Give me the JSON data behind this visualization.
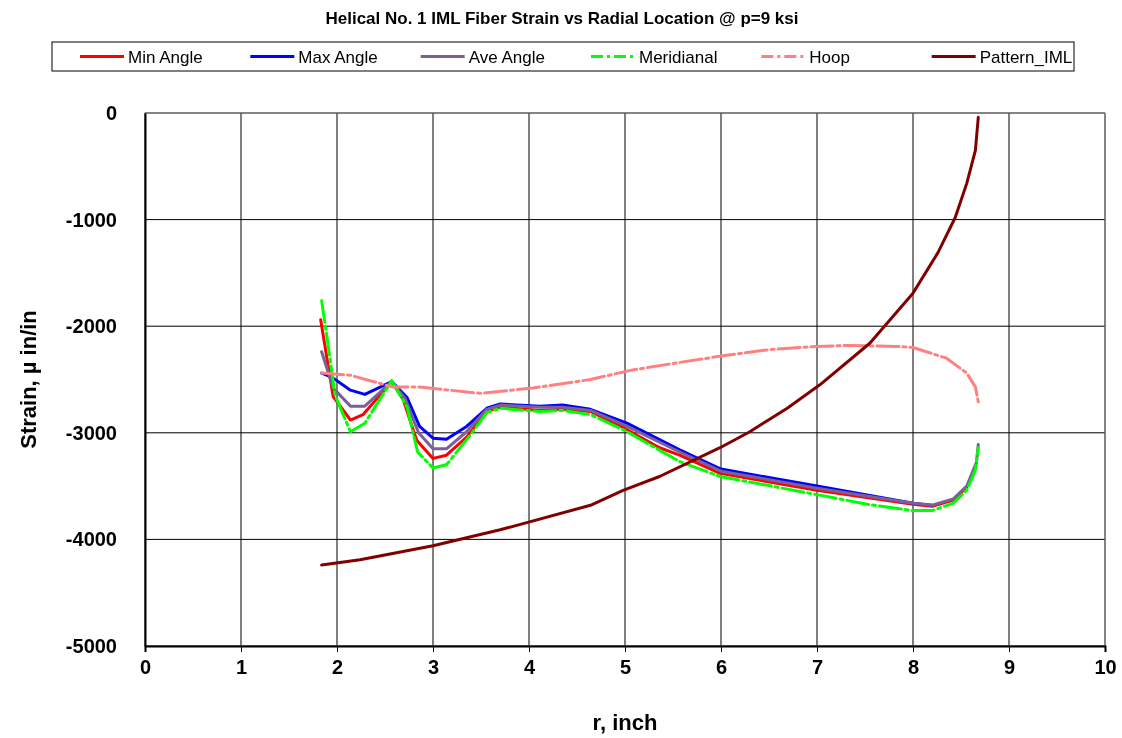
{
  "chart_data": {
    "type": "line",
    "title": "Helical No. 1 IML Fiber Strain vs Radial Location @ p=9 ksi",
    "xlabel": "r, inch",
    "ylabel": "Strain, µ in/in",
    "xlim": [
      0,
      10
    ],
    "xticks": [
      0,
      1,
      2,
      3,
      4,
      5,
      6,
      7,
      8,
      9,
      10
    ],
    "ylim": [
      -5000,
      0
    ],
    "yticks": [
      -5000,
      -4000,
      -3000,
      -2000,
      -1000,
      0
    ],
    "grid": true,
    "legend": "top",
    "marker": "none",
    "series": [
      {
        "name": "Min Angle",
        "color": "#ff0000",
        "line_style": "solid",
        "x": [
          1.83,
          1.96,
          2.14,
          2.27,
          2.57,
          2.69,
          2.83,
          3.0,
          3.14,
          3.35,
          3.56,
          3.7,
          4.11,
          4.35,
          4.64,
          4.98,
          5.36,
          5.57,
          5.99,
          7.0,
          8.0,
          8.2,
          8.42,
          8.56
        ],
        "values": [
          -1940,
          -2660,
          -2880,
          -2830,
          -2520,
          -2690,
          -3070,
          -3240,
          -3210,
          -3040,
          -2800,
          -2760,
          -2790,
          -2780,
          -2800,
          -2950,
          -3140,
          -3210,
          -3380,
          -3540,
          -3670,
          -3690,
          -3630,
          -3510
        ]
      },
      {
        "name": "Max Angle",
        "color": "#0000ff",
        "line_style": "solid",
        "x": [
          1.84,
          1.95,
          2.14,
          2.29,
          2.57,
          2.73,
          2.86,
          3.0,
          3.14,
          3.35,
          3.56,
          3.7,
          4.11,
          4.35,
          4.64,
          5.02,
          5.57,
          6.0,
          7.0,
          8.0,
          8.2
        ],
        "values": [
          -2440,
          -2480,
          -2600,
          -2640,
          -2520,
          -2670,
          -2940,
          -3050,
          -3060,
          -2940,
          -2770,
          -2730,
          -2750,
          -2740,
          -2780,
          -2910,
          -3160,
          -3340,
          -3500,
          -3660,
          -3680
        ]
      },
      {
        "name": "Ave Angle",
        "color": "#7b5f99",
        "line_style": "solid",
        "x": [
          1.84,
          1.96,
          2.14,
          2.29,
          2.57,
          2.71,
          2.85,
          3.0,
          3.14,
          3.35,
          3.56,
          3.7,
          4.11,
          4.35,
          4.64,
          5.0,
          5.57,
          6.0,
          7.0,
          8.0,
          8.2,
          8.42,
          8.56,
          8.66,
          8.68
        ],
        "values": [
          -2240,
          -2580,
          -2750,
          -2750,
          -2520,
          -2680,
          -3000,
          -3150,
          -3150,
          -2990,
          -2780,
          -2740,
          -2760,
          -2760,
          -2790,
          -2930,
          -3180,
          -3360,
          -3520,
          -3660,
          -3680,
          -3620,
          -3500,
          -3280,
          -3110
        ]
      },
      {
        "name": "Meridianal",
        "color": "#00ff00",
        "line_style": "dashed",
        "x": [
          1.84,
          1.9,
          1.98,
          2.14,
          2.29,
          2.57,
          2.73,
          2.84,
          3.0,
          3.14,
          3.39,
          3.56,
          3.7,
          4.11,
          4.35,
          4.64,
          4.98,
          5.57,
          5.99,
          7.0,
          7.52,
          8.0,
          8.2,
          8.42,
          8.56,
          8.65,
          8.68
        ],
        "values": [
          -1760,
          -2130,
          -2650,
          -2990,
          -2910,
          -2510,
          -2760,
          -3180,
          -3330,
          -3300,
          -3020,
          -2810,
          -2770,
          -2800,
          -2790,
          -2830,
          -2970,
          -3270,
          -3410,
          -3580,
          -3670,
          -3730,
          -3730,
          -3660,
          -3540,
          -3350,
          -3140
        ]
      },
      {
        "name": "Hoop",
        "color": "#ff8080",
        "line_style": "dashed",
        "x": [
          1.84,
          2.14,
          2.58,
          2.86,
          3.49,
          4.04,
          4.64,
          5.08,
          5.57,
          6.0,
          6.5,
          7.0,
          7.31,
          7.83,
          8.0,
          8.35,
          8.56,
          8.65,
          8.68
        ],
        "values": [
          -2440,
          -2460,
          -2570,
          -2570,
          -2630,
          -2580,
          -2500,
          -2410,
          -2340,
          -2280,
          -2220,
          -2190,
          -2180,
          -2190,
          -2200,
          -2300,
          -2440,
          -2570,
          -2710
        ]
      },
      {
        "name": "Pattern_IML",
        "color": "#800000",
        "line_style": "solid",
        "x": [
          1.84,
          2.24,
          3.0,
          3.7,
          4.64,
          4.98,
          5.36,
          5.99,
          6.3,
          6.69,
          7.03,
          7.55,
          8.0,
          8.26,
          8.44,
          8.56,
          8.65,
          8.68
        ],
        "values": [
          -4240,
          -4190,
          -4060,
          -3910,
          -3680,
          -3540,
          -3410,
          -3140,
          -2990,
          -2770,
          -2550,
          -2160,
          -1690,
          -1310,
          -980,
          -660,
          -350,
          -40
        ]
      }
    ]
  }
}
